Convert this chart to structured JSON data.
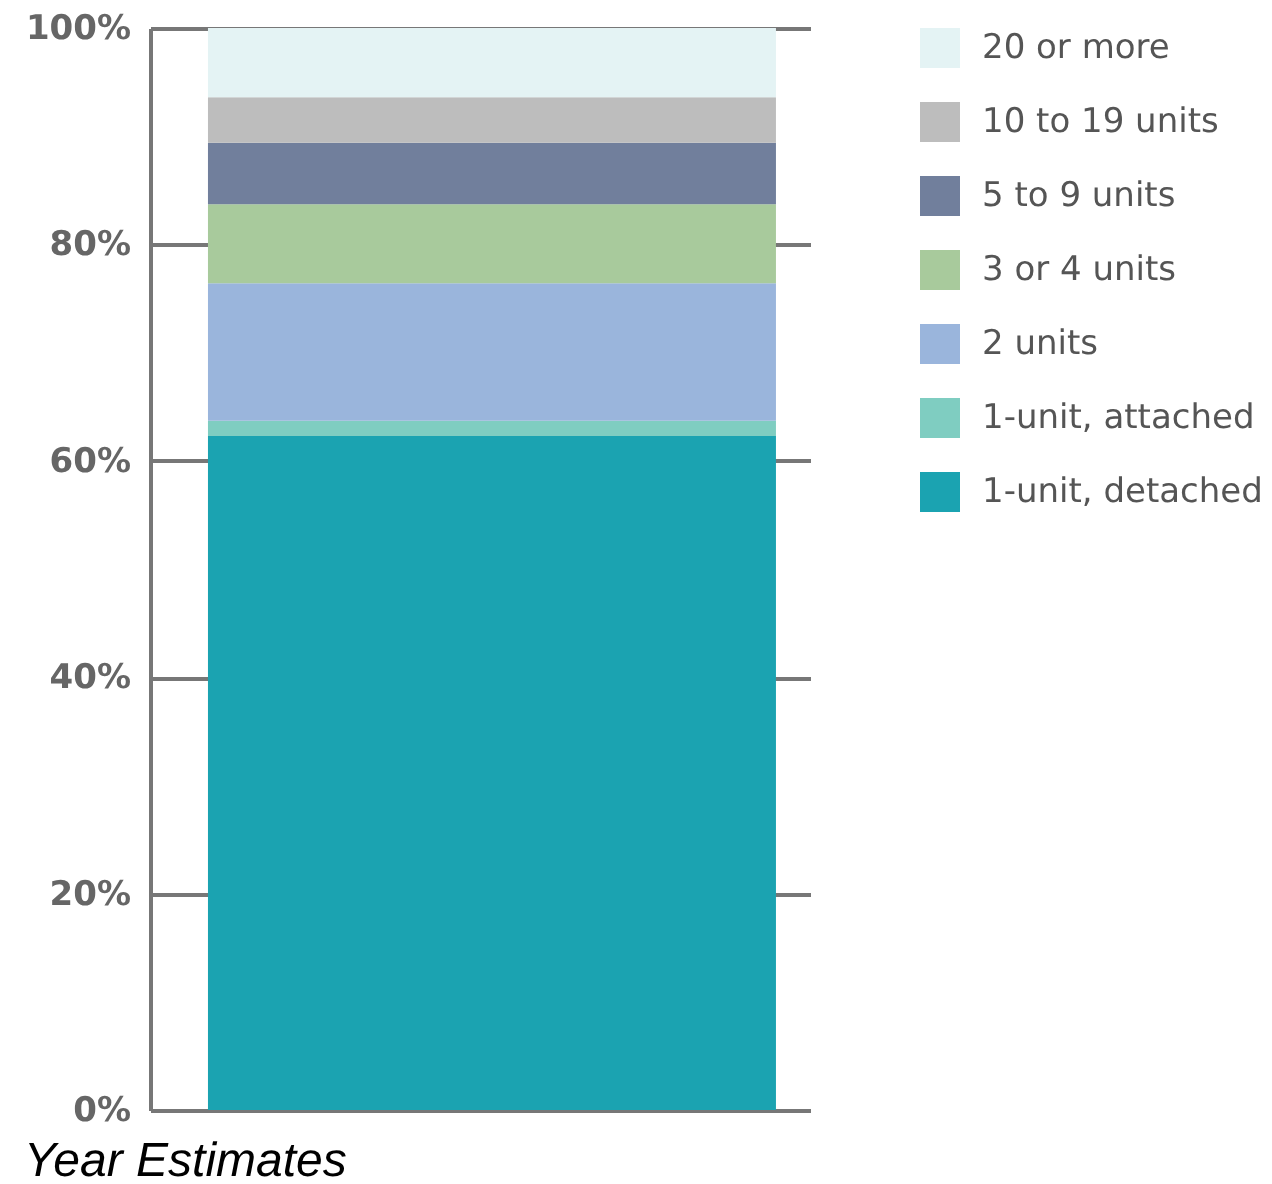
{
  "chart_data": {
    "type": "bar",
    "stacked": true,
    "categories": [
      null
    ],
    "series": [
      {
        "name": "1-unit, detached",
        "color": "#1ba3b1",
        "values": [
          62.3
        ]
      },
      {
        "name": "1-unit, attached",
        "color": "#7fcdc1",
        "values": [
          1.4
        ]
      },
      {
        "name": "2 units",
        "color": "#9ab5dc",
        "values": [
          12.7
        ]
      },
      {
        "name": "3 or 4 units",
        "color": "#a8ca9c",
        "values": [
          7.3
        ]
      },
      {
        "name": "5 to 9 units",
        "color": "#717f9c",
        "values": [
          5.7
        ]
      },
      {
        "name": "10 to 19 units",
        "color": "#bdbdbd",
        "values": [
          4.2
        ]
      },
      {
        "name": "20 or more",
        "color": "#e4f3f4",
        "values": [
          6.4
        ]
      }
    ],
    "ylim": [
      0,
      100
    ],
    "yticks": [
      {
        "value": 0,
        "label": "0%"
      },
      {
        "value": 20,
        "label": "20%"
      },
      {
        "value": 40,
        "label": "40%"
      },
      {
        "value": 60,
        "label": "60%"
      },
      {
        "value": 80,
        "label": "80%"
      },
      {
        "value": 100,
        "label": "100%"
      }
    ],
    "grid": "y",
    "legend": "right",
    "annotations": [
      "Year Estimates"
    ]
  }
}
